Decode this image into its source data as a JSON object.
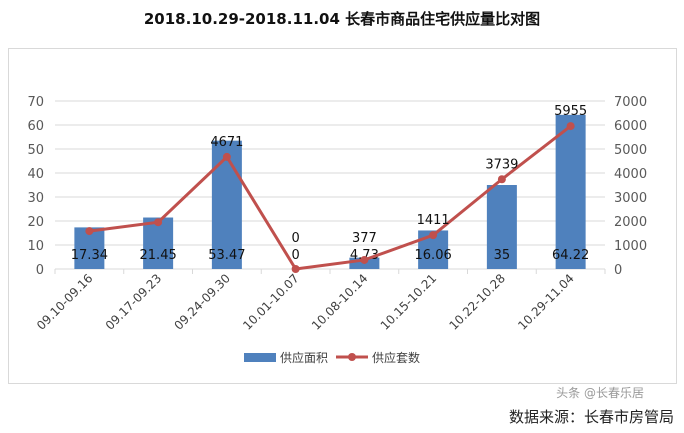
{
  "title": "2018.10.29-2018.11.04 长春市商品住宅供应量比对图",
  "source": "数据来源：长春市房管局",
  "watermark": "头条 @长春乐居",
  "chart_data": {
    "type": "bar+line",
    "categories": [
      "09.10-09.16",
      "09.17-09.23",
      "09.24-09.30",
      "10.01-10.07",
      "10.08-10.14",
      "10.15-10.21",
      "10.22-10.28",
      "10.29-11.04"
    ],
    "series": [
      {
        "name": "供应面积",
        "type": "bar",
        "axis": "left",
        "color": "#4f81bd",
        "values": [
          17.34,
          21.45,
          53.47,
          0,
          4.73,
          16.06,
          35,
          64.22
        ],
        "labels": [
          "17.34",
          "21.45",
          "53.47",
          "0",
          "4.73",
          "16.06",
          "35",
          "64.22"
        ]
      },
      {
        "name": "供应套数",
        "type": "line",
        "axis": "right",
        "color": "#c0504d",
        "values": [
          1580,
          1950,
          4671,
          0,
          377,
          1411,
          3739,
          5955
        ],
        "labels": [
          "",
          "",
          "4671",
          "0",
          "377",
          "1411",
          "3739",
          "5955"
        ]
      }
    ],
    "y_left": {
      "range": [
        0,
        70
      ],
      "ticks": [
        "0",
        "10",
        "20",
        "30",
        "40",
        "50",
        "60",
        "70"
      ]
    },
    "y_right": {
      "range": [
        0,
        7000
      ],
      "ticks": [
        "0",
        "1000",
        "2000",
        "3000",
        "4000",
        "5000",
        "6000",
        "7000"
      ]
    },
    "grid": true,
    "legend": "bottom"
  }
}
